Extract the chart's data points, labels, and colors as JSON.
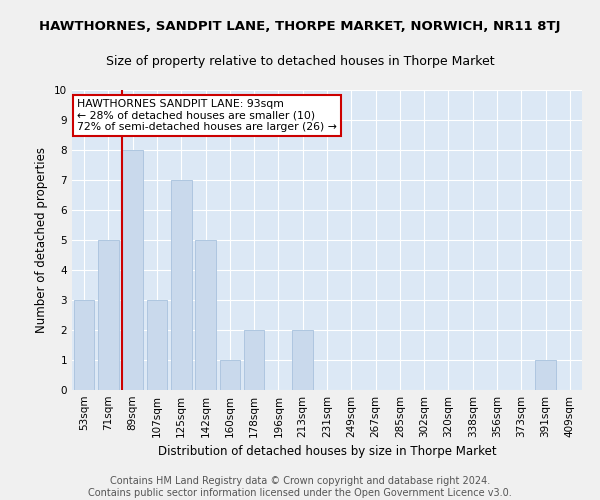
{
  "title": "HAWTHORNES, SANDPIT LANE, THORPE MARKET, NORWICH, NR11 8TJ",
  "subtitle": "Size of property relative to detached houses in Thorpe Market",
  "xlabel": "Distribution of detached houses by size in Thorpe Market",
  "ylabel": "Number of detached properties",
  "categories": [
    "53sqm",
    "71sqm",
    "89sqm",
    "107sqm",
    "125sqm",
    "142sqm",
    "160sqm",
    "178sqm",
    "196sqm",
    "213sqm",
    "231sqm",
    "249sqm",
    "267sqm",
    "285sqm",
    "302sqm",
    "320sqm",
    "338sqm",
    "356sqm",
    "373sqm",
    "391sqm",
    "409sqm"
  ],
  "values": [
    3,
    5,
    8,
    3,
    7,
    5,
    1,
    2,
    0,
    2,
    0,
    0,
    0,
    0,
    0,
    0,
    0,
    0,
    0,
    1,
    0
  ],
  "bar_color": "#c9d9ec",
  "bar_edgecolor": "#aec6e0",
  "vline_index": 2,
  "vline_color": "#cc0000",
  "ylim": [
    0,
    10
  ],
  "yticks": [
    0,
    1,
    2,
    3,
    4,
    5,
    6,
    7,
    8,
    9,
    10
  ],
  "annotation_text": "HAWTHORNES SANDPIT LANE: 93sqm\n← 28% of detached houses are smaller (10)\n72% of semi-detached houses are larger (26) →",
  "annotation_box_color": "#ffffff",
  "annotation_box_edgecolor": "#cc0000",
  "footer": "Contains HM Land Registry data © Crown copyright and database right 2024.\nContains public sector information licensed under the Open Government Licence v3.0.",
  "fig_facecolor": "#f0f0f0",
  "bg_color": "#dce8f5",
  "grid_color": "#ffffff",
  "title_fontsize": 9.5,
  "subtitle_fontsize": 9,
  "xlabel_fontsize": 8.5,
  "ylabel_fontsize": 8.5,
  "tick_fontsize": 7.5,
  "footer_fontsize": 7,
  "annotation_fontsize": 7.8
}
